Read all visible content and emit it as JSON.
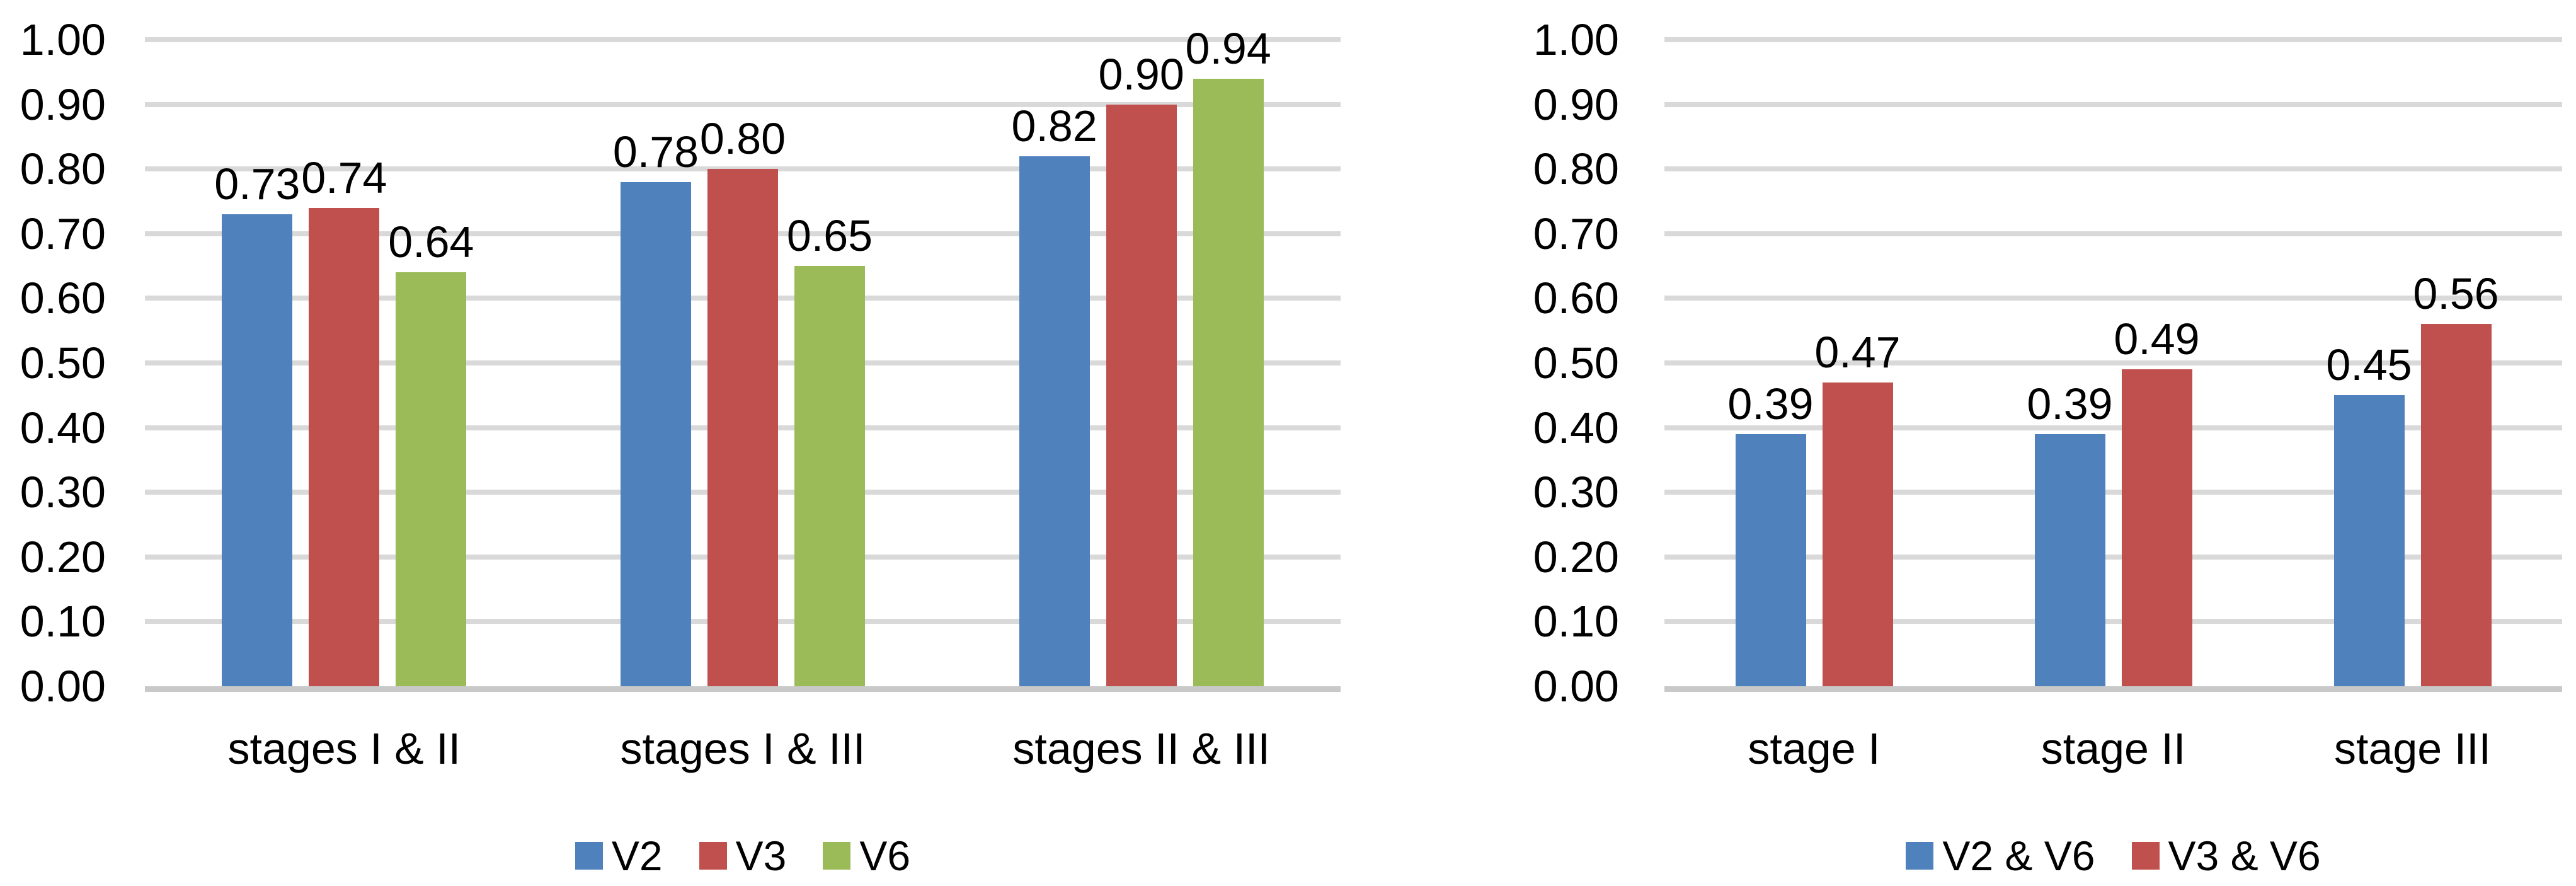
{
  "style": {
    "background": "#FFFFFF",
    "text_color": "#000000",
    "gridline_color": "#D9D9D9",
    "axis_line_color": "#C9C9C9",
    "series_palette": [
      "#4F81BD",
      "#C0504D",
      "#9BBB59"
    ]
  },
  "chart_data": [
    {
      "type": "bar",
      "title": "",
      "xlabel": "",
      "ylabel": "",
      "categories": [
        "stages I & II",
        "stages I & III",
        "stages II & III"
      ],
      "series": [
        {
          "name": "V2",
          "color": "#4F81BD",
          "values": [
            0.73,
            0.78,
            0.82
          ]
        },
        {
          "name": "V3",
          "color": "#C0504D",
          "values": [
            0.74,
            0.8,
            0.9
          ]
        },
        {
          "name": "V6",
          "color": "#9BBB59",
          "values": [
            0.64,
            0.65,
            0.94
          ]
        }
      ],
      "data_labels": [
        "0.73",
        "0.74",
        "0.64",
        "0.78",
        "0.80",
        "0.65",
        "0.82",
        "0.90",
        "0.94"
      ],
      "ylim": [
        0,
        1
      ],
      "ytick_step": 0.1,
      "y_tick_labels": [
        "1.00",
        "0.90",
        "0.80",
        "0.70",
        "0.60",
        "0.50",
        "0.40",
        "0.30",
        "0.20",
        "0.10",
        "0.00"
      ],
      "grid": true,
      "legend_position": "bottom",
      "legend_labels": [
        "V2",
        "V3",
        "V6"
      ]
    },
    {
      "type": "bar",
      "title": "",
      "xlabel": "",
      "ylabel": "",
      "categories": [
        "stage I",
        "stage II",
        "stage III"
      ],
      "series": [
        {
          "name": "V2 & V6",
          "color": "#4F81BD",
          "values": [
            0.39,
            0.39,
            0.45
          ]
        },
        {
          "name": "V3 & V6",
          "color": "#C0504D",
          "values": [
            0.47,
            0.49,
            0.56
          ]
        }
      ],
      "data_labels": [
        "0.39",
        "0.47",
        "0.39",
        "0.49",
        "0.45",
        "0.56"
      ],
      "ylim": [
        0,
        1
      ],
      "ytick_step": 0.1,
      "y_tick_labels": [
        "1.00",
        "0.90",
        "0.80",
        "0.70",
        "0.60",
        "0.50",
        "0.40",
        "0.30",
        "0.20",
        "0.10",
        "0.00"
      ],
      "grid": true,
      "legend_position": "bottom",
      "legend_labels": [
        "V2 & V6",
        "V3 & V6"
      ]
    }
  ]
}
